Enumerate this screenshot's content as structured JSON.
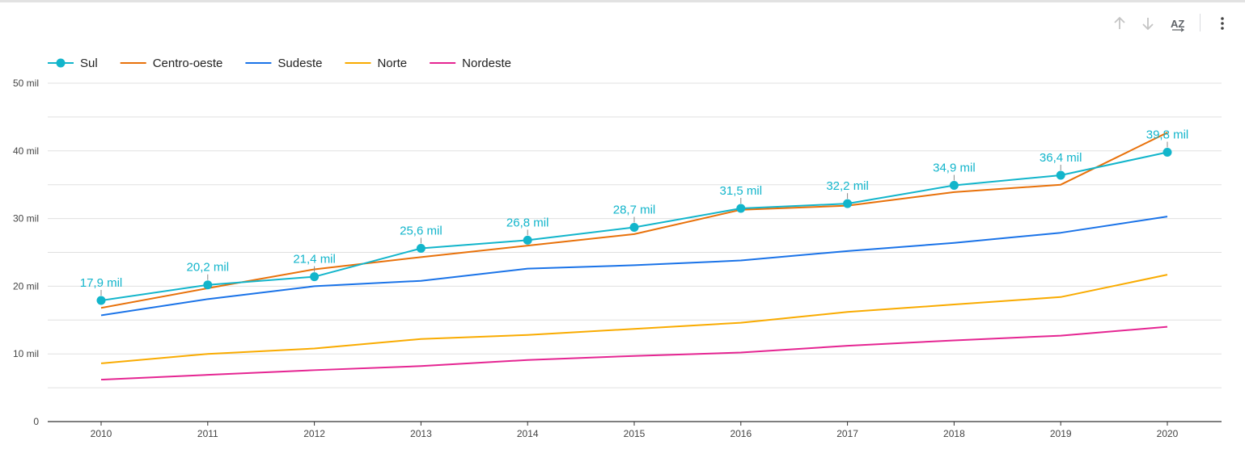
{
  "toolbar": {
    "sort_ascending_icon": "arrow-up-icon",
    "sort_descending_icon": "arrow-down-icon",
    "sort_az_icon": "az-sort-icon",
    "az_label": "AZ",
    "more_icon": "more-vert-icon"
  },
  "colors": {
    "Sul": "#12b5cb",
    "Centro-oeste": "#e8710a",
    "Sudeste": "#1a73e8",
    "Norte": "#f9ab00",
    "Nordeste": "#e52592",
    "gridline": "#e0e0e0",
    "axis": "#333333",
    "tick_text": "#444444"
  },
  "chart_data": {
    "type": "line",
    "title": "",
    "xlabel": "",
    "ylabel": "",
    "categories": [
      "2010",
      "2011",
      "2012",
      "2013",
      "2014",
      "2015",
      "2016",
      "2017",
      "2018",
      "2019",
      "2020"
    ],
    "ylim": [
      0,
      50000
    ],
    "yticks": [
      {
        "value": 0,
        "label": "0"
      },
      {
        "value": 10000,
        "label": "10 mil"
      },
      {
        "value": 20000,
        "label": "20 mil"
      },
      {
        "value": 30000,
        "label": "30 mil"
      },
      {
        "value": 40000,
        "label": "40 mil"
      },
      {
        "value": 50000,
        "label": "50 mil"
      }
    ],
    "grid": true,
    "legend_position": "top-left",
    "series": [
      {
        "name": "Sul",
        "markers": true,
        "values": [
          17900,
          20200,
          21400,
          25600,
          26800,
          28700,
          31500,
          32200,
          34900,
          36400,
          39800
        ],
        "data_labels": [
          "17,9 mil",
          "20,2 mil",
          "21,4 mil",
          "25,6 mil",
          "26,8 mil",
          "28,7 mil",
          "31,5 mil",
          "32,2 mil",
          "34,9 mil",
          "36,4 mil",
          "39,8 mil"
        ]
      },
      {
        "name": "Centro-oeste",
        "markers": false,
        "values": [
          16800,
          19700,
          22500,
          24300,
          26000,
          27700,
          31300,
          31900,
          33900,
          35000,
          42700
        ]
      },
      {
        "name": "Sudeste",
        "markers": false,
        "values": [
          15700,
          18100,
          20000,
          20800,
          22600,
          23100,
          23800,
          25200,
          26400,
          27900,
          30300
        ]
      },
      {
        "name": "Norte",
        "markers": false,
        "values": [
          8600,
          10000,
          10800,
          12200,
          12800,
          13700,
          14600,
          16200,
          17300,
          18400,
          21700
        ]
      },
      {
        "name": "Nordeste",
        "markers": false,
        "values": [
          6200,
          6900,
          7600,
          8200,
          9100,
          9700,
          10200,
          11200,
          12000,
          12700,
          14000
        ]
      }
    ]
  }
}
